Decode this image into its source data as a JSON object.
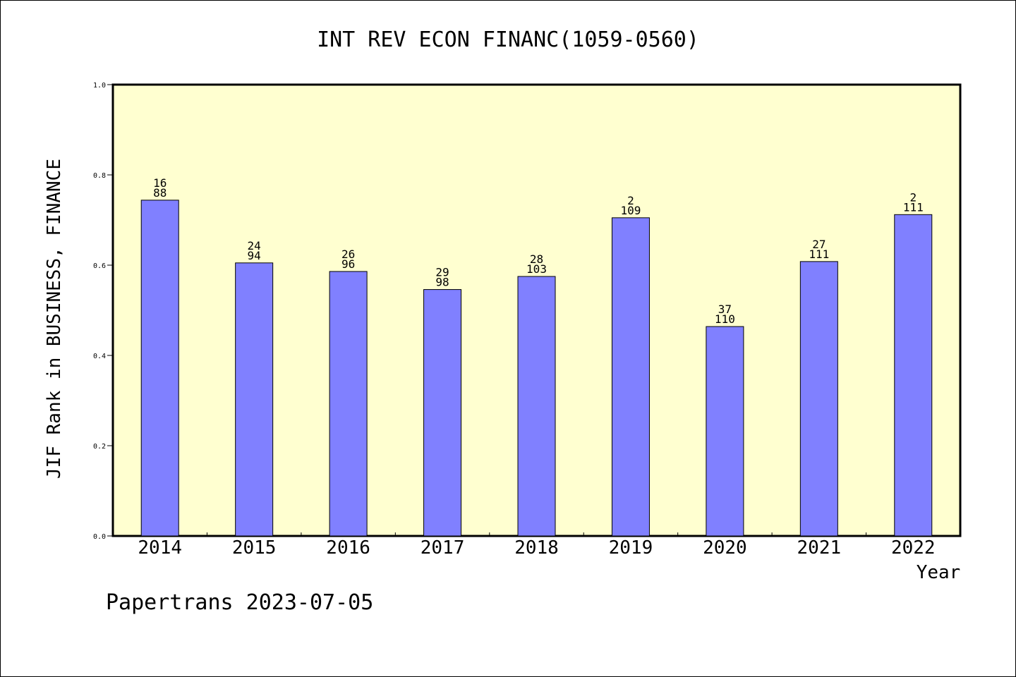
{
  "chart_data": {
    "type": "bar",
    "title": "INT REV ECON FINANC(1059-0560)",
    "xlabel": "Year",
    "ylabel": "JIF Rank in BUSINESS, FINANCE",
    "ylim": [
      0,
      1.0
    ],
    "yticks": [
      "0.0",
      "0.2",
      "0.4",
      "0.6",
      "0.8",
      "1.0"
    ],
    "categories": [
      "2014",
      "2015",
      "2016",
      "2017",
      "2018",
      "2019",
      "2020",
      "2021",
      "2022"
    ],
    "values": [
      0.744,
      0.605,
      0.586,
      0.546,
      0.575,
      0.705,
      0.464,
      0.608,
      0.712
    ],
    "labels_top": [
      "16",
      "24",
      "26",
      "29",
      "28",
      "2",
      "37",
      "27",
      "2"
    ],
    "labels_bottom": [
      "88",
      "94",
      "96",
      "98",
      "103",
      "109",
      "110",
      "111",
      "111"
    ],
    "grid": false,
    "colors": {
      "bar": "#8080ff",
      "plot_background": "#ffffd0"
    }
  },
  "footer": "Papertrans 2023-07-05"
}
